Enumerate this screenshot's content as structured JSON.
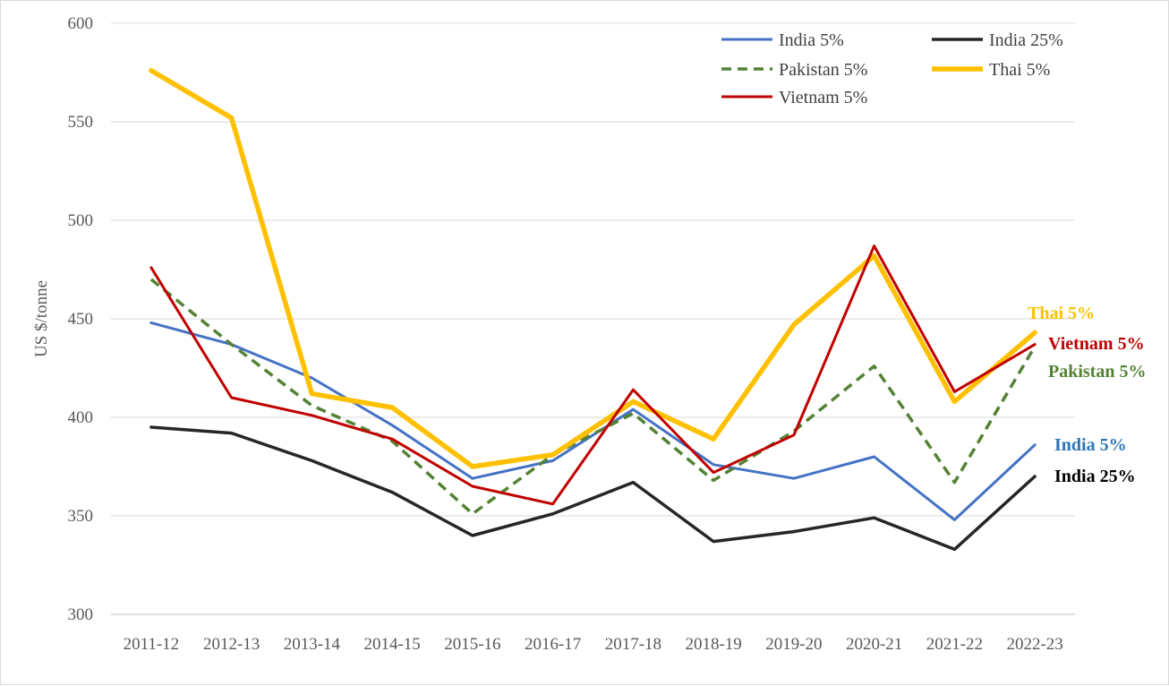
{
  "chart_data": {
    "type": "line",
    "title": "",
    "xlabel": "",
    "ylabel": "US $/tonne",
    "ylim": [
      300,
      600
    ],
    "yticks": [
      300,
      350,
      400,
      450,
      500,
      550,
      600
    ],
    "grid": true,
    "legend_position": "top-right",
    "categories": [
      "2011-12",
      "2012-13",
      "2013-14",
      "2014-15",
      "2015-16",
      "2016-17",
      "2017-18",
      "2018-19",
      "2019-20",
      "2020-21",
      "2021-22",
      "2022-23"
    ],
    "series": [
      {
        "name": "India 5%",
        "color": "#4472c4",
        "dash": false,
        "width": 3,
        "values": [
          448,
          437,
          420,
          396,
          369,
          378,
          404,
          376,
          369,
          380,
          348,
          386
        ]
      },
      {
        "name": "India 25%",
        "color": "#262626",
        "dash": false,
        "width": 3.5,
        "values": [
          395,
          392,
          378,
          362,
          340,
          351,
          367,
          337,
          342,
          349,
          333,
          370
        ]
      },
      {
        "name": "Pakistan 5%",
        "color": "#548235",
        "dash": true,
        "width": 3.5,
        "values": [
          470,
          437,
          406,
          388,
          351,
          381,
          402,
          368,
          393,
          426,
          367,
          436
        ]
      },
      {
        "name": "Thai 5%",
        "color": "#ffc000",
        "dash": false,
        "width": 5.5,
        "values": [
          576,
          552,
          412,
          405,
          375,
          381,
          408,
          389,
          447,
          482,
          408,
          443
        ]
      },
      {
        "name": "Vietnam 5%",
        "color": "#c00000",
        "dash": false,
        "width": 3,
        "values": [
          476,
          410,
          401,
          389,
          365,
          356,
          414,
          372,
          391,
          487,
          413,
          437
        ]
      }
    ],
    "legend": [
      {
        "label": "India 5%",
        "series": 0
      },
      {
        "label": "India 25%",
        "series": 1
      },
      {
        "label": "Pakistan 5%",
        "series": 2
      },
      {
        "label": "Thai 5%",
        "series": 3
      },
      {
        "label": "Vietnam 5%",
        "series": 4
      }
    ],
    "end_labels": [
      {
        "text": "Thai 5%",
        "series": 3,
        "color": "#ffc000"
      },
      {
        "text": "Vietnam 5%",
        "series": 4,
        "color": "#c00000"
      },
      {
        "text": "Pakistan 5%",
        "series": 2,
        "color": "#548235"
      },
      {
        "text": "India 5%",
        "series": 0,
        "color": "#2e75b6"
      },
      {
        "text": "India 25%",
        "series": 1,
        "color": "#000000"
      }
    ]
  }
}
